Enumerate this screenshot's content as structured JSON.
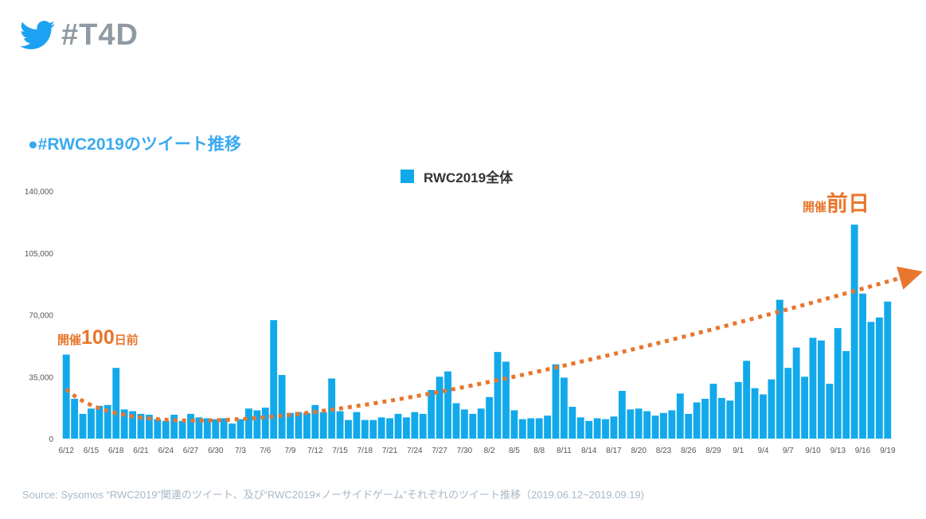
{
  "header": {
    "hashtag": "#T4D",
    "icon": "twitter-bird-icon"
  },
  "subtitle": "●#RWC2019のツイート推移",
  "colors": {
    "bar": "#12a9ea",
    "trend": "#e8762d",
    "header_text": "#8f9aa3",
    "subtitle": "#3aaaf0",
    "source": "#a8b8c8"
  },
  "annotations": {
    "left": {
      "prefix": "開催",
      "number": "100",
      "suffix": "日前"
    },
    "right": {
      "prefix": "開催",
      "main": "前日"
    }
  },
  "source": "Source: Sysomos “RWC2019”関連のツイート、及び“RWC2019×ノーサイドゲーム”それぞれのツイート推移（2019.06.12~2019.09.19)",
  "chart_data": {
    "type": "bar",
    "legend": [
      "RWC2019全体"
    ],
    "legend_position": "top-center",
    "ylim": [
      0,
      140000
    ],
    "yticks": [
      "140,000",
      "105,000",
      "70,000",
      "35,000",
      "0"
    ],
    "ytick_values": [
      140000,
      105000,
      70000,
      35000,
      0
    ],
    "xtick_labels": [
      "6/12",
      "6/15",
      "6/18",
      "6/21",
      "6/24",
      "6/27",
      "6/30",
      "7/3",
      "7/6",
      "7/9",
      "7/12",
      "7/15",
      "7/18",
      "7/21",
      "7/24",
      "7/27",
      "7/30",
      "8/2",
      "8/5",
      "8/8",
      "8/11",
      "8/14",
      "8/17",
      "8/20",
      "8/23",
      "8/26",
      "8/29",
      "9/1",
      "9/4",
      "9/7",
      "9/10",
      "9/13",
      "9/16",
      "9/19"
    ],
    "label_every": 3,
    "start_date": "2019-06-12",
    "series": [
      {
        "name": "RWC2019全体",
        "values": [
          47500,
          22500,
          14000,
          17000,
          18500,
          19000,
          40000,
          16500,
          15500,
          14000,
          13500,
          11000,
          10000,
          13500,
          10000,
          14000,
          12000,
          11500,
          11000,
          11500,
          8500,
          11000,
          17000,
          16000,
          17500,
          67000,
          36000,
          14500,
          15000,
          14500,
          19000,
          15000,
          34000,
          15500,
          10500,
          15000,
          10500,
          10500,
          12000,
          11500,
          14000,
          12000,
          15000,
          14000,
          27500,
          35000,
          38000,
          20000,
          16500,
          14000,
          17000,
          23500,
          49000,
          43500,
          16000,
          11000,
          11500,
          11500,
          13000,
          42000,
          34500,
          18000,
          12000,
          10000,
          11500,
          11000,
          12500,
          27000,
          16500,
          17000,
          15500,
          13000,
          14500,
          16000,
          25500,
          14000,
          20500,
          22500,
          31000,
          23000,
          21500,
          32000,
          44000,
          28500,
          25000,
          33500,
          78500,
          40000,
          51500,
          35000,
          57000,
          55500,
          31000,
          62500,
          49500,
          121000,
          82000,
          66000,
          68500,
          77500
        ]
      }
    ],
    "trend": {
      "start": 28000,
      "min": 16000,
      "min_at_fraction": 0.31,
      "end": 92000
    }
  }
}
